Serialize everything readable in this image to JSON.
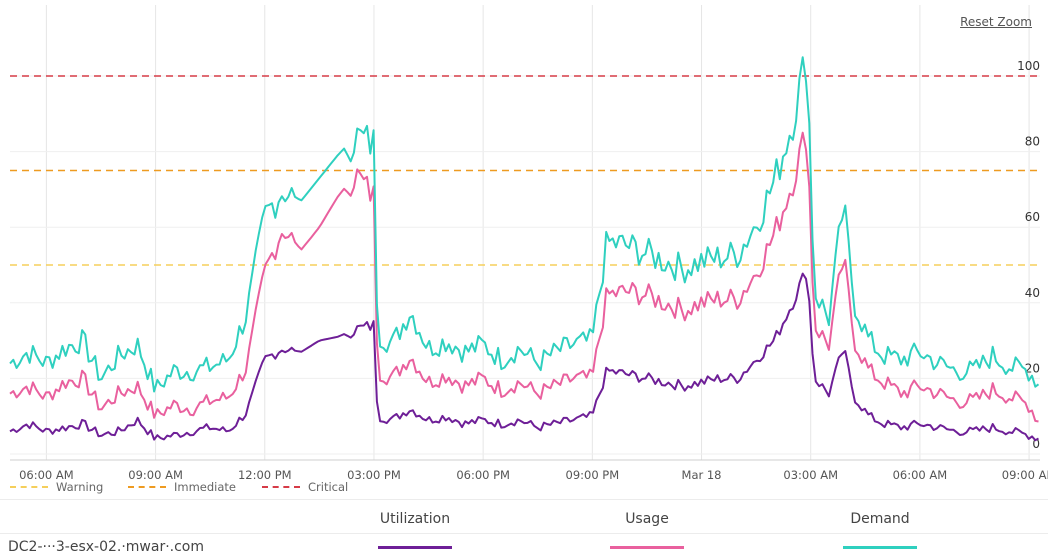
{
  "reset_zoom_label": "Reset Zoom",
  "host_label": "DC2-···3-esx-02.·mwar·.com",
  "chart_data": {
    "type": "line",
    "title": "",
    "ylim": [
      0,
      110
    ],
    "y_ticks": [
      0,
      20,
      40,
      60,
      80,
      100
    ],
    "x_ticks": [
      "06:00 AM",
      "09:00 AM",
      "12:00 PM",
      "03:00 PM",
      "06:00 PM",
      "09:00 PM",
      "Mar 18",
      "03:00 AM",
      "06:00 AM",
      "09:00 AM"
    ],
    "x_range_hours": [
      5.0,
      33.3
    ],
    "grid": true,
    "thresholds": [
      {
        "name": "Warning",
        "value": 50,
        "color": "#f5cf5b"
      },
      {
        "name": "Immediate",
        "value": 75,
        "color": "#ee9b21"
      },
      {
        "name": "Critical",
        "value": 100,
        "color": "#d63b47"
      }
    ],
    "series": [
      {
        "name": "Utilization",
        "color": "#6e1f97",
        "points": [
          [
            5.0,
            6
          ],
          [
            5.5,
            8
          ],
          [
            6.0,
            6
          ],
          [
            6.5,
            7
          ],
          [
            7.0,
            8
          ],
          [
            7.5,
            5
          ],
          [
            8.0,
            6
          ],
          [
            8.5,
            9
          ],
          [
            9.0,
            4
          ],
          [
            9.5,
            5
          ],
          [
            10.0,
            6
          ],
          [
            10.5,
            7
          ],
          [
            11.0,
            6
          ],
          [
            11.5,
            11
          ],
          [
            12.0,
            25
          ],
          [
            12.5,
            28
          ],
          [
            13.0,
            27
          ],
          [
            13.5,
            30
          ],
          [
            14.0,
            31
          ],
          [
            14.5,
            33
          ],
          [
            15.0,
            34
          ],
          [
            15.1,
            10
          ],
          [
            15.5,
            9
          ],
          [
            16.0,
            12
          ],
          [
            16.5,
            9
          ],
          [
            17.0,
            10
          ],
          [
            17.5,
            8
          ],
          [
            18.0,
            9
          ],
          [
            18.5,
            8
          ],
          [
            19.0,
            9
          ],
          [
            19.5,
            7
          ],
          [
            20.0,
            8
          ],
          [
            20.5,
            9
          ],
          [
            21.0,
            10
          ],
          [
            21.4,
            22
          ],
          [
            22.0,
            21
          ],
          [
            22.5,
            20
          ],
          [
            23.0,
            19
          ],
          [
            23.5,
            18
          ],
          [
            24.0,
            19
          ],
          [
            24.5,
            20
          ],
          [
            25.0,
            20
          ],
          [
            25.5,
            25
          ],
          [
            26.0,
            30
          ],
          [
            26.5,
            40
          ],
          [
            26.9,
            49
          ],
          [
            27.1,
            20
          ],
          [
            27.5,
            16
          ],
          [
            27.9,
            28
          ],
          [
            28.2,
            15
          ],
          [
            28.6,
            10
          ],
          [
            29.0,
            8
          ],
          [
            29.5,
            7
          ],
          [
            30.0,
            8
          ],
          [
            30.5,
            7
          ],
          [
            31.0,
            6
          ],
          [
            31.5,
            6
          ],
          [
            32.0,
            7
          ],
          [
            32.5,
            6
          ],
          [
            33.0,
            5
          ],
          [
            33.3,
            4
          ]
        ]
      },
      {
        "name": "Usage",
        "color": "#e9609e",
        "points": [
          [
            5.0,
            16
          ],
          [
            5.5,
            18
          ],
          [
            6.0,
            15
          ],
          [
            6.5,
            19
          ],
          [
            7.0,
            20
          ],
          [
            7.5,
            12
          ],
          [
            8.0,
            16
          ],
          [
            8.5,
            18
          ],
          [
            9.0,
            10
          ],
          [
            9.5,
            13
          ],
          [
            10.0,
            12
          ],
          [
            10.5,
            14
          ],
          [
            11.0,
            15
          ],
          [
            11.5,
            23
          ],
          [
            12.0,
            48
          ],
          [
            12.5,
            60
          ],
          [
            13.0,
            54
          ],
          [
            13.5,
            60
          ],
          [
            14.0,
            68
          ],
          [
            14.5,
            74
          ],
          [
            15.0,
            68
          ],
          [
            15.1,
            22
          ],
          [
            15.5,
            20
          ],
          [
            16.0,
            26
          ],
          [
            16.5,
            19
          ],
          [
            17.0,
            21
          ],
          [
            17.5,
            18
          ],
          [
            18.0,
            20
          ],
          [
            18.5,
            17
          ],
          [
            19.0,
            19
          ],
          [
            19.5,
            16
          ],
          [
            20.0,
            18
          ],
          [
            20.5,
            20
          ],
          [
            21.0,
            20
          ],
          [
            21.4,
            42
          ],
          [
            22.0,
            43
          ],
          [
            22.5,
            42
          ],
          [
            23.0,
            40
          ],
          [
            23.5,
            38
          ],
          [
            24.0,
            40
          ],
          [
            24.5,
            41
          ],
          [
            25.0,
            41
          ],
          [
            25.5,
            48
          ],
          [
            26.0,
            58
          ],
          [
            26.5,
            72
          ],
          [
            26.9,
            86
          ],
          [
            27.1,
            34
          ],
          [
            27.5,
            29
          ],
          [
            27.9,
            52
          ],
          [
            28.2,
            30
          ],
          [
            28.6,
            22
          ],
          [
            29.0,
            19
          ],
          [
            29.5,
            16
          ],
          [
            30.0,
            18
          ],
          [
            30.5,
            16
          ],
          [
            31.0,
            14
          ],
          [
            31.5,
            14
          ],
          [
            32.0,
            17
          ],
          [
            32.5,
            15
          ],
          [
            33.0,
            13
          ],
          [
            33.3,
            8
          ]
        ]
      },
      {
        "name": "Demand",
        "color": "#2fd0bf",
        "points": [
          [
            5.0,
            24
          ],
          [
            5.5,
            27
          ],
          [
            6.0,
            24
          ],
          [
            6.5,
            28
          ],
          [
            7.0,
            30
          ],
          [
            7.5,
            20
          ],
          [
            8.0,
            26
          ],
          [
            8.5,
            29
          ],
          [
            9.0,
            17
          ],
          [
            9.5,
            22
          ],
          [
            10.0,
            22
          ],
          [
            10.5,
            23
          ],
          [
            11.0,
            25
          ],
          [
            11.5,
            37
          ],
          [
            12.0,
            63
          ],
          [
            12.5,
            70
          ],
          [
            13.0,
            67
          ],
          [
            13.5,
            73
          ],
          [
            14.0,
            79
          ],
          [
            14.5,
            84
          ],
          [
            15.0,
            82
          ],
          [
            15.1,
            32
          ],
          [
            15.5,
            29
          ],
          [
            16.0,
            38
          ],
          [
            16.5,
            28
          ],
          [
            17.0,
            30
          ],
          [
            17.5,
            27
          ],
          [
            18.0,
            29
          ],
          [
            18.5,
            25
          ],
          [
            19.0,
            28
          ],
          [
            19.5,
            24
          ],
          [
            20.0,
            27
          ],
          [
            20.5,
            29
          ],
          [
            21.0,
            30
          ],
          [
            21.4,
            56
          ],
          [
            22.0,
            55
          ],
          [
            22.5,
            53
          ],
          [
            23.0,
            51
          ],
          [
            23.5,
            49
          ],
          [
            24.0,
            51
          ],
          [
            24.5,
            52
          ],
          [
            25.0,
            53
          ],
          [
            25.5,
            61
          ],
          [
            26.0,
            72
          ],
          [
            26.5,
            88
          ],
          [
            26.9,
            106
          ],
          [
            27.1,
            43
          ],
          [
            27.5,
            36
          ],
          [
            27.9,
            66
          ],
          [
            28.2,
            40
          ],
          [
            28.6,
            30
          ],
          [
            29.0,
            26
          ],
          [
            29.5,
            25
          ],
          [
            30.0,
            27
          ],
          [
            30.5,
            24
          ],
          [
            31.0,
            22
          ],
          [
            31.5,
            22
          ],
          [
            32.0,
            26
          ],
          [
            32.5,
            23
          ],
          [
            33.0,
            22
          ],
          [
            33.3,
            18
          ]
        ]
      }
    ]
  }
}
